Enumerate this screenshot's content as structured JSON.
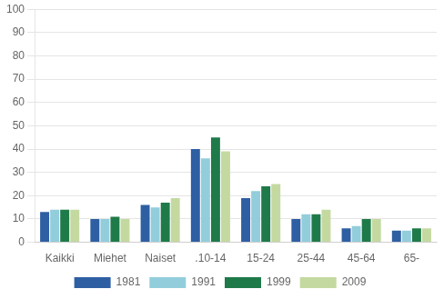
{
  "chart_data": {
    "type": "bar",
    "categories": [
      "Kaikki",
      "Miehet",
      "Naiset",
      ".10-14",
      "15-24",
      "25-44",
      "45-64",
      "65-"
    ],
    "series": [
      {
        "name": "1981",
        "color": "#2E5FA3",
        "values": [
          13,
          10,
          16,
          40,
          19,
          10,
          6,
          5
        ]
      },
      {
        "name": "1991",
        "color": "#92CDDC",
        "values": [
          14,
          10,
          15,
          36,
          22,
          12,
          7,
          5
        ]
      },
      {
        "name": "1999",
        "color": "#1F7A4A",
        "values": [
          14,
          11,
          17,
          45,
          24,
          12,
          10,
          6
        ]
      },
      {
        "name": "2009",
        "color": "#C4D9A0",
        "values": [
          14,
          10,
          19,
          39,
          25,
          14,
          10,
          6
        ]
      }
    ],
    "ylim": [
      0,
      100
    ],
    "yticks": [
      0,
      10,
      20,
      30,
      40,
      50,
      60,
      70,
      80,
      90,
      100
    ],
    "grid": true,
    "legend": "bottom"
  }
}
